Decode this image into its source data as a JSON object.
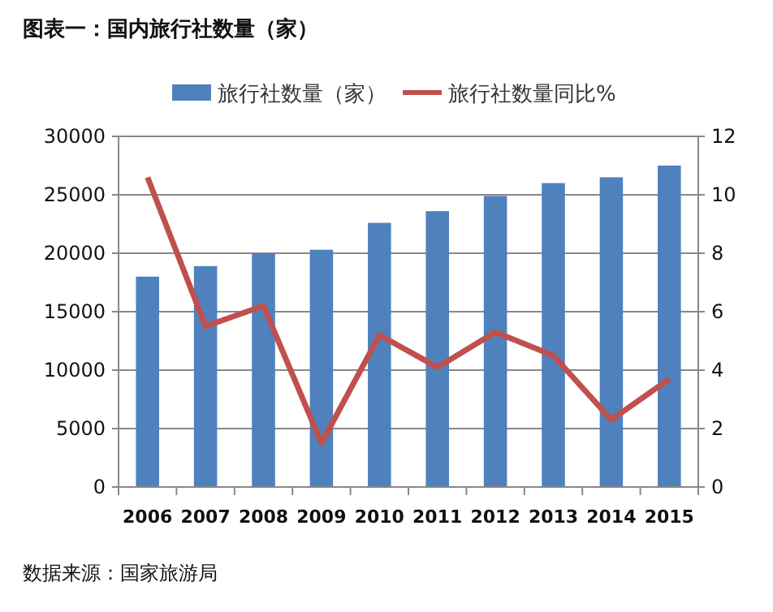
{
  "chart_data": {
    "type": "bar",
    "title": "图表一：国内旅行社数量（家）",
    "categories": [
      "2006",
      "2007",
      "2008",
      "2009",
      "2010",
      "2011",
      "2012",
      "2013",
      "2014",
      "2015"
    ],
    "series": [
      {
        "name": "旅行社数量（家）",
        "color": "#4f81bd",
        "values": [
          18000,
          18900,
          20000,
          20300,
          22600,
          23600,
          24900,
          26000,
          26500,
          27500
        ]
      },
      {
        "name": "旅行社数量同比%",
        "type": "line",
        "axis": "y2",
        "color": "#c0504d",
        "values": [
          10.6,
          5.5,
          6.2,
          1.5,
          5.2,
          4.1,
          5.3,
          4.5,
          2.3,
          3.7
        ]
      }
    ],
    "ylim": [
      0,
      30000
    ],
    "yticks": [
      0,
      5000,
      10000,
      15000,
      20000,
      25000,
      30000
    ],
    "y2lim": [
      0,
      12
    ],
    "y2ticks": [
      0,
      2,
      4,
      6,
      8,
      10,
      12
    ],
    "grid": "y",
    "legend": "top",
    "marker": "none",
    "line_style": "solid",
    "annotations": [
      "数据来源：国家旅游局"
    ]
  }
}
